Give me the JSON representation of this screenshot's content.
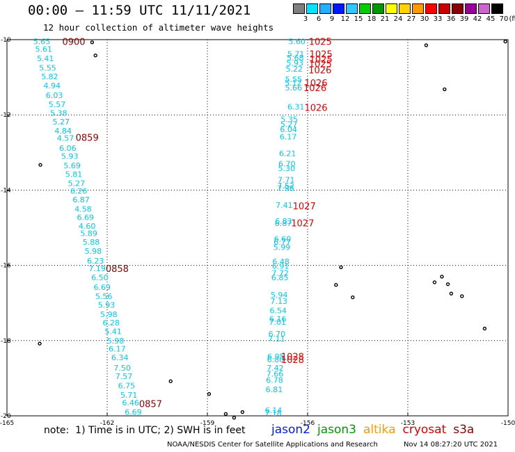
{
  "header": {
    "title": "00:00 – 11:59 UTC 11/11/2021",
    "subtitle": "12 hour collection of altimeter wave heights"
  },
  "legend": {
    "unit": "(ft)",
    "swatches": [
      {
        "color": "#7f7f7f",
        "label": "3"
      },
      {
        "color": "#00e5ff",
        "label": "6"
      },
      {
        "color": "#1fb0ff",
        "label": "9"
      },
      {
        "color": "#0018ff",
        "label": "12"
      },
      {
        "color": "#30c8ff",
        "label": "15"
      },
      {
        "color": "#00d000",
        "label": "18"
      },
      {
        "color": "#009900",
        "label": "21"
      },
      {
        "color": "#ffff00",
        "label": "24"
      },
      {
        "color": "#ffd200",
        "label": "27"
      },
      {
        "color": "#ff9a00",
        "label": "30"
      },
      {
        "color": "#ff0000",
        "label": "33"
      },
      {
        "color": "#cc0000",
        "label": "36"
      },
      {
        "color": "#8b0000",
        "label": "39"
      },
      {
        "color": "#9a009a",
        "label": "42"
      },
      {
        "color": "#cc66cc",
        "label": "45"
      },
      {
        "color": "#000000",
        "label": "70"
      }
    ]
  },
  "map": {
    "lon_ticks": [
      "-165",
      "-162",
      "-159",
      "-156",
      "-153",
      "-150"
    ],
    "lat_ticks": [
      "-10",
      "-12",
      "-14",
      "-16",
      "-18",
      "-20"
    ],
    "colors": {
      "cyan": "#00c8f0",
      "red": "#e00000",
      "darkred": "#8b0000",
      "land": "#000000"
    },
    "track_west": [
      {
        "lon": -163.96,
        "lat": -10.05,
        "label": "5.65"
      },
      {
        "lon": -163.9,
        "lat": -10.25,
        "label": "5.61"
      },
      {
        "lon": -163.85,
        "lat": -10.5,
        "label": "5.41"
      },
      {
        "lon": -163.78,
        "lat": -10.75,
        "label": "5.55"
      },
      {
        "lon": -163.72,
        "lat": -10.98,
        "label": "5.82"
      },
      {
        "lon": -163.65,
        "lat": -11.22,
        "label": "4.94"
      },
      {
        "lon": -163.58,
        "lat": -11.48,
        "label": "6.03"
      },
      {
        "lon": -163.5,
        "lat": -11.72,
        "label": "5.57"
      },
      {
        "lon": -163.45,
        "lat": -11.95,
        "label": "5.38"
      },
      {
        "lon": -163.38,
        "lat": -12.18,
        "label": "5.27"
      },
      {
        "lon": -163.32,
        "lat": -12.42,
        "label": "4.84"
      },
      {
        "lon": -163.25,
        "lat": -12.62,
        "label": "4.57"
      },
      {
        "lon": -163.18,
        "lat": -12.88,
        "label": "6.06"
      },
      {
        "lon": -163.12,
        "lat": -13.1,
        "label": "5.93"
      },
      {
        "lon": -163.05,
        "lat": -13.35,
        "label": "5.69"
      },
      {
        "lon": -163.0,
        "lat": -13.58,
        "label": "5.81"
      },
      {
        "lon": -162.92,
        "lat": -13.82,
        "label": "5.27"
      },
      {
        "lon": -162.85,
        "lat": -14.02,
        "label": "6.26"
      },
      {
        "lon": -162.78,
        "lat": -14.25,
        "label": "6.87"
      },
      {
        "lon": -162.72,
        "lat": -14.5,
        "label": "4.58"
      },
      {
        "lon": -162.65,
        "lat": -14.72,
        "label": "6.69"
      },
      {
        "lon": -162.6,
        "lat": -14.95,
        "label": "4.60"
      },
      {
        "lon": -162.55,
        "lat": -15.15,
        "label": "5.89"
      },
      {
        "lon": -162.48,
        "lat": -15.38,
        "label": "5.88"
      },
      {
        "lon": -162.42,
        "lat": -15.62,
        "label": "5.98"
      },
      {
        "lon": -162.35,
        "lat": -15.88,
        "label": "6.23"
      },
      {
        "lon": -162.3,
        "lat": -16.08,
        "label": "7.19"
      },
      {
        "lon": -162.22,
        "lat": -16.32,
        "label": "6.50"
      },
      {
        "lon": -162.15,
        "lat": -16.58,
        "label": "6.69"
      },
      {
        "lon": -162.1,
        "lat": -16.82,
        "label": "5.56"
      },
      {
        "lon": -162.02,
        "lat": -17.05,
        "label": "5.93"
      },
      {
        "lon": -161.95,
        "lat": -17.3,
        "label": "5.98"
      },
      {
        "lon": -161.88,
        "lat": -17.52,
        "label": "6.28"
      },
      {
        "lon": -161.82,
        "lat": -17.75,
        "label": "5.41"
      },
      {
        "lon": -161.75,
        "lat": -18.0,
        "label": "5.98"
      },
      {
        "lon": -161.7,
        "lat": -18.22,
        "label": "6.17"
      },
      {
        "lon": -161.62,
        "lat": -18.45,
        "label": "6.34"
      },
      {
        "lon": -161.55,
        "lat": -18.72,
        "label": "7.50"
      },
      {
        "lon": -161.5,
        "lat": -18.95,
        "label": "7.57"
      },
      {
        "lon": -161.42,
        "lat": -19.2,
        "label": "6.75"
      },
      {
        "lon": -161.35,
        "lat": -19.45,
        "label": "5.71"
      },
      {
        "lon": -161.3,
        "lat": -19.65,
        "label": "6.46"
      },
      {
        "lon": -161.22,
        "lat": -19.9,
        "label": "6.69"
      }
    ],
    "track_east": [
      {
        "lon": -156.32,
        "lat": -10.05,
        "label": "5.60"
      },
      {
        "lon": -156.35,
        "lat": -10.38,
        "label": "5.71"
      },
      {
        "lon": -156.37,
        "lat": -10.48,
        "label": "5.68"
      },
      {
        "lon": -156.38,
        "lat": -10.62,
        "label": "5.93"
      },
      {
        "lon": -156.4,
        "lat": -10.78,
        "label": "5.22"
      },
      {
        "lon": -156.42,
        "lat": -11.05,
        "label": "5.55"
      },
      {
        "lon": -156.43,
        "lat": -11.15,
        "label": "5.12"
      },
      {
        "lon": -156.42,
        "lat": -11.28,
        "label": "5.66"
      },
      {
        "lon": -156.35,
        "lat": -11.78,
        "label": "6.31"
      },
      {
        "lon": -156.55,
        "lat": -12.12,
        "label": "5.35"
      },
      {
        "lon": -156.56,
        "lat": -12.25,
        "label": "5.27"
      },
      {
        "lon": -156.57,
        "lat": -12.38,
        "label": "6.04"
      },
      {
        "lon": -156.58,
        "lat": -12.58,
        "label": "6.17"
      },
      {
        "lon": -156.6,
        "lat": -13.02,
        "label": "6.21"
      },
      {
        "lon": -156.62,
        "lat": -13.3,
        "label": "6.70"
      },
      {
        "lon": -156.63,
        "lat": -13.42,
        "label": "5.30"
      },
      {
        "lon": -156.64,
        "lat": -13.72,
        "label": "7.71"
      },
      {
        "lon": -156.65,
        "lat": -13.88,
        "label": "7.52"
      },
      {
        "lon": -156.66,
        "lat": -13.95,
        "label": "7.98"
      },
      {
        "lon": -156.7,
        "lat": -14.4,
        "label": "7.41"
      },
      {
        "lon": -156.72,
        "lat": -14.82,
        "label": "6.83"
      },
      {
        "lon": -156.73,
        "lat": -14.88,
        "label": "6.87"
      },
      {
        "lon": -156.75,
        "lat": -15.3,
        "label": "6.60"
      },
      {
        "lon": -156.76,
        "lat": -15.38,
        "label": "6.77"
      },
      {
        "lon": -156.77,
        "lat": -15.52,
        "label": "5.99"
      },
      {
        "lon": -156.8,
        "lat": -15.9,
        "label": "6.48"
      },
      {
        "lon": -156.81,
        "lat": -16.02,
        "label": "6.91"
      },
      {
        "lon": -156.82,
        "lat": -16.2,
        "label": "7.72"
      },
      {
        "lon": -156.83,
        "lat": -16.32,
        "label": "6.85"
      },
      {
        "lon": -156.85,
        "lat": -16.78,
        "label": "5.94"
      },
      {
        "lon": -156.86,
        "lat": -16.95,
        "label": "7.13"
      },
      {
        "lon": -156.88,
        "lat": -17.2,
        "label": "6.54"
      },
      {
        "lon": -156.89,
        "lat": -17.42,
        "label": "6.16"
      },
      {
        "lon": -156.9,
        "lat": -17.5,
        "label": "7.01"
      },
      {
        "lon": -156.92,
        "lat": -17.82,
        "label": "6.70"
      },
      {
        "lon": -156.93,
        "lat": -17.95,
        "label": "7.11"
      },
      {
        "lon": -156.95,
        "lat": -18.42,
        "label": "6.95"
      },
      {
        "lon": -156.96,
        "lat": -18.5,
        "label": "6.80"
      },
      {
        "lon": -156.97,
        "lat": -18.72,
        "label": "7.42"
      },
      {
        "lon": -156.98,
        "lat": -18.88,
        "label": "7.66"
      },
      {
        "lon": -156.99,
        "lat": -19.05,
        "label": "6.78"
      },
      {
        "lon": -157.0,
        "lat": -19.3,
        "label": "6.81"
      },
      {
        "lon": -157.02,
        "lat": -19.85,
        "label": "6.14"
      },
      {
        "lon": -157.03,
        "lat": -19.93,
        "label": "7.18"
      }
    ],
    "time_labels": [
      {
        "lon": -163.0,
        "lat": -10.05,
        "label": "0900",
        "color": "#8b0000"
      },
      {
        "lon": -162.6,
        "lat": -12.6,
        "label": "0859",
        "color": "#8b0000"
      },
      {
        "lon": -161.7,
        "lat": -16.08,
        "label": "0858",
        "color": "#8b0000"
      },
      {
        "lon": -160.7,
        "lat": -19.68,
        "label": "0857",
        "color": "#8b0000"
      },
      {
        "lon": -155.62,
        "lat": -10.05,
        "label": "1025",
        "color": "#e00000"
      },
      {
        "lon": -155.6,
        "lat": -10.38,
        "label": "1025",
        "color": "#e00000"
      },
      {
        "lon": -155.6,
        "lat": -10.52,
        "label": "1025",
        "color": "#e00000"
      },
      {
        "lon": -155.62,
        "lat": -10.64,
        "label": "1025",
        "color": "#e00000"
      },
      {
        "lon": -155.63,
        "lat": -10.8,
        "label": "1026",
        "color": "#e00000"
      },
      {
        "lon": -155.75,
        "lat": -11.15,
        "label": "1026",
        "color": "#e00000"
      },
      {
        "lon": -155.78,
        "lat": -11.28,
        "label": "1026",
        "color": "#e00000"
      },
      {
        "lon": -155.75,
        "lat": -11.8,
        "label": "1026",
        "color": "#e00000"
      },
      {
        "lon": -156.1,
        "lat": -14.42,
        "label": "1027",
        "color": "#e00000"
      },
      {
        "lon": -156.15,
        "lat": -14.87,
        "label": "1027",
        "color": "#e00000"
      },
      {
        "lon": -156.45,
        "lat": -18.42,
        "label": "1028",
        "color": "#e00000"
      },
      {
        "lon": -156.45,
        "lat": -18.5,
        "label": "1028",
        "color": "#e00000"
      }
    ],
    "islands": [
      {
        "lon": -162.45,
        "lat": -10.07
      },
      {
        "lon": -162.35,
        "lat": -10.42
      },
      {
        "lon": -164.0,
        "lat": -13.33
      },
      {
        "lon": -164.02,
        "lat": -18.08
      },
      {
        "lon": -160.1,
        "lat": -19.08
      },
      {
        "lon": -158.95,
        "lat": -19.42
      },
      {
        "lon": -158.45,
        "lat": -19.95
      },
      {
        "lon": -157.95,
        "lat": -19.9
      },
      {
        "lon": -158.2,
        "lat": -20.05
      },
      {
        "lon": -155.0,
        "lat": -16.05
      },
      {
        "lon": -155.15,
        "lat": -16.52
      },
      {
        "lon": -154.65,
        "lat": -16.85
      },
      {
        "lon": -152.45,
        "lat": -10.15
      },
      {
        "lon": -151.9,
        "lat": -11.32
      },
      {
        "lon": -152.2,
        "lat": -16.45
      },
      {
        "lon": -151.98,
        "lat": -16.3
      },
      {
        "lon": -151.8,
        "lat": -16.5
      },
      {
        "lon": -151.7,
        "lat": -16.75
      },
      {
        "lon": -151.38,
        "lat": -16.82
      },
      {
        "lon": -150.7,
        "lat": -17.68
      },
      {
        "lon": -150.08,
        "lat": -10.05
      }
    ]
  },
  "footer": {
    "note": "note:  1) Time is in UTC; 2) SWH is in feet",
    "satellites": [
      {
        "name": "jason2",
        "color": "#0018ff"
      },
      {
        "name": "jason3",
        "color": "#009900"
      },
      {
        "name": "altika",
        "color": "#ff9a00"
      },
      {
        "name": "cryosat",
        "color": "#e00000"
      },
      {
        "name": "s3a",
        "color": "#8b0000"
      }
    ],
    "credit": "NOAA/NESDIS Center for Satellite Applications and Research",
    "timestamp": "Nov 14 08:27:20 UTC 2021"
  }
}
